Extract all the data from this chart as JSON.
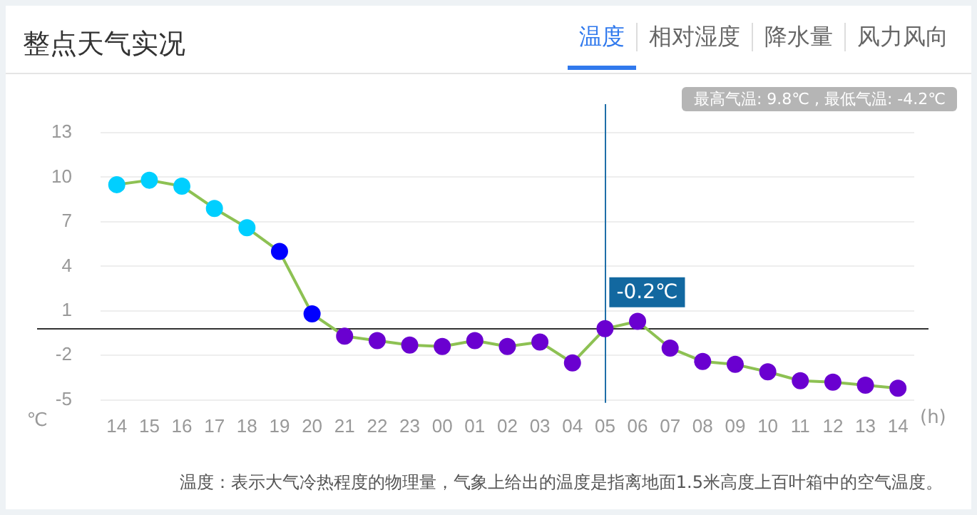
{
  "chart_data": {
    "type": "line",
    "title": "整点天气实况",
    "subtitle": "最高气温: 9.8℃ , 最低气温: -4.2℃",
    "categories": [
      "14",
      "15",
      "16",
      "17",
      "18",
      "19",
      "20",
      "21",
      "22",
      "23",
      "00",
      "01",
      "02",
      "03",
      "04",
      "05",
      "06",
      "07",
      "08",
      "09",
      "10",
      "11",
      "12",
      "13",
      "14"
    ],
    "series": [
      {
        "color": "#8dc153",
        "values": [
          9.5,
          9.8,
          9.4,
          7.9,
          6.6,
          5.0,
          0.8,
          -0.7,
          -1.0,
          -1.3,
          -1.4,
          -1.0,
          -1.4,
          -1.1,
          -2.5,
          -0.2,
          0.3,
          -1.5,
          -2.4,
          -2.6,
          -3.1,
          -3.7,
          -3.8,
          -4.0,
          -4.2
        ],
        "colors": [
          "#00cfff",
          "#00cfff",
          "#00cfff",
          "#00cfff",
          "#00cfff",
          "#0000ff",
          "#0000ff",
          "#6a00d0",
          "#6a00d0",
          "#6a00d0",
          "#6a00d0",
          "#6a00d0",
          "#6a00d0",
          "#6a00d0",
          "#6a00d0",
          "#6a00d0",
          "#6a00d0",
          "#6a00d0",
          "#6a00d0",
          "#6a00d0",
          "#6a00d0",
          "#6a00d0",
          "#6a00d0",
          "#6a00d0",
          "#6a00d0"
        ]
      }
    ],
    "ref_lines": [
      {
        "axis": "x",
        "value": "05",
        "color": "#1f6fa8"
      },
      {
        "axis": "y",
        "value": -0.2,
        "color": "#333333"
      }
    ],
    "ylim": [
      -5,
      13
    ],
    "yticks": [
      -5,
      -2,
      1,
      4,
      7,
      10,
      13
    ],
    "ylabel": "℃",
    "xlabel": "(h)",
    "grid": "y",
    "marker": "circle",
    "legend": false,
    "annotations": [
      "温度",
      "相对湿度",
      "降水量",
      "风力风向",
      "温度：表示大气冷热程度的物理量，气象上给出的温度是指离地面1.5米高度上百叶箱中的空气温度。",
      {
        "text": "-0.2℃",
        "x": "05",
        "y": -0.2
      }
    ]
  }
}
